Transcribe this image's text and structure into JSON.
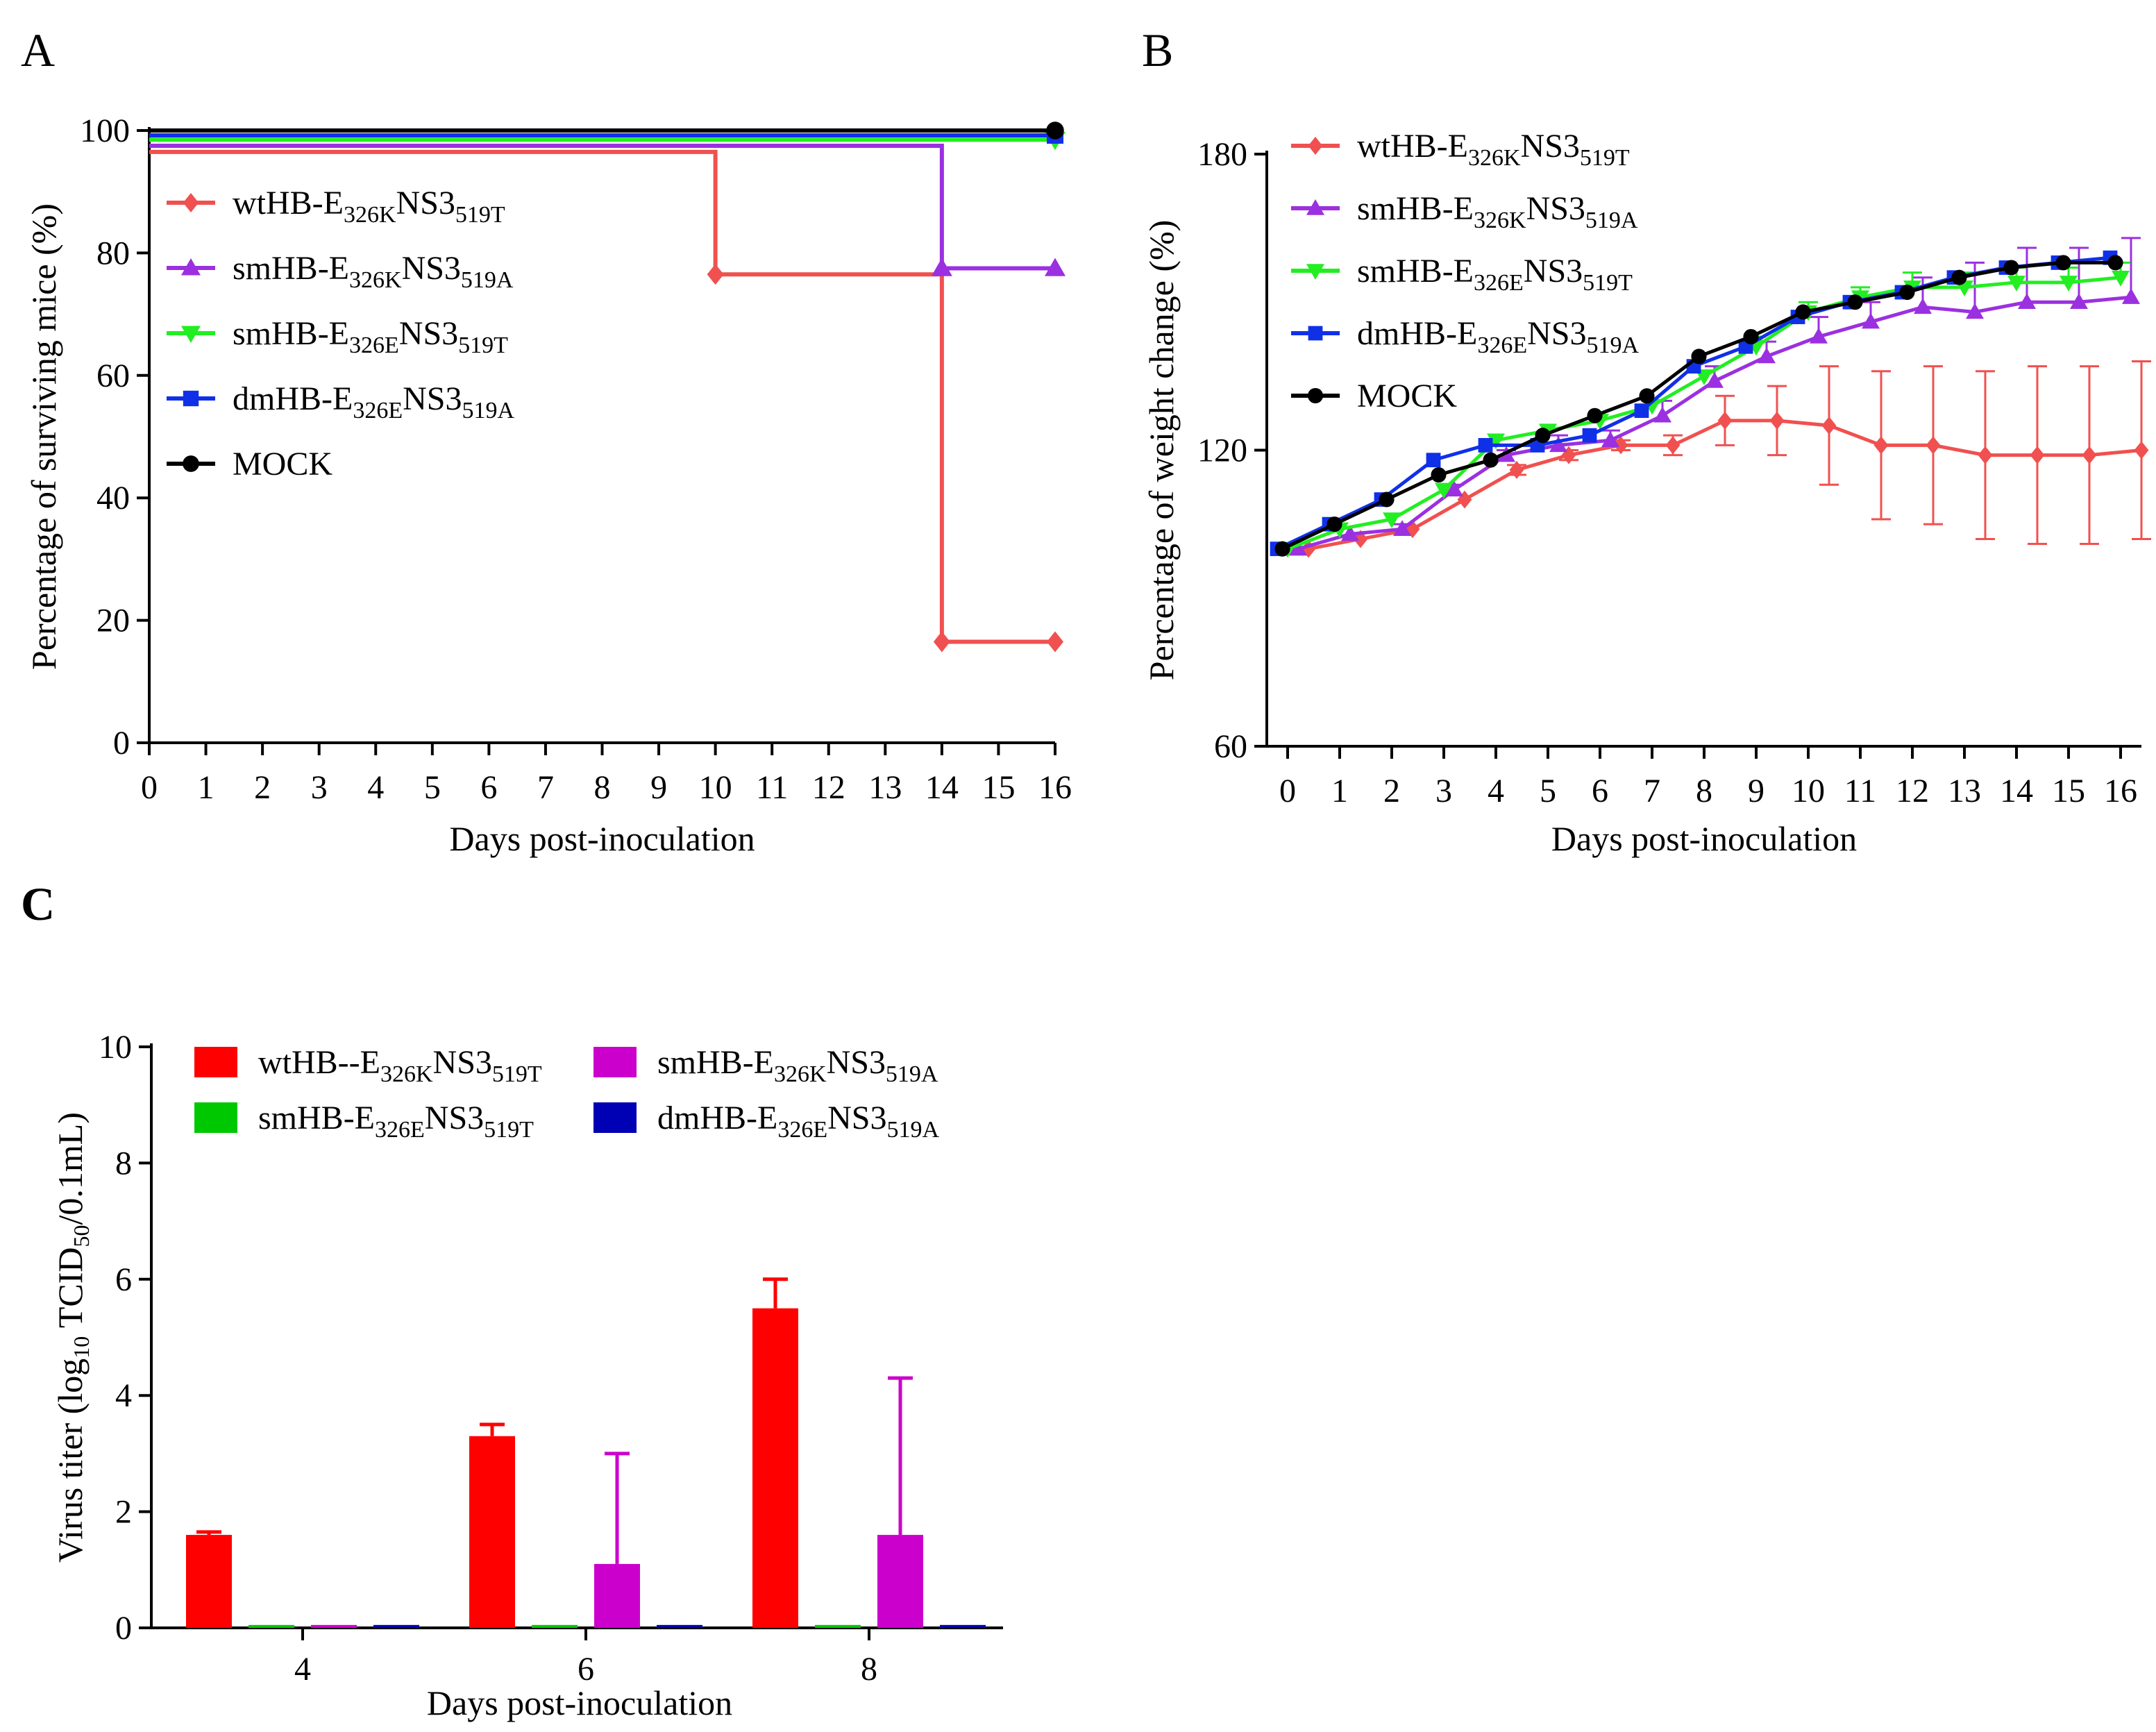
{
  "figure": {
    "panel_labels": [
      "A",
      "B",
      "C"
    ]
  },
  "colors": {
    "wt": "#f0504f",
    "sm_k": "#9b30e0",
    "sm_e": "#22ee22",
    "dm": "#1030e8",
    "mock": "#000000",
    "barWt": "#ff0000",
    "barSmE": "#00c800",
    "barSmK": "#cc00cc",
    "barDm": "#0000b4"
  },
  "chart_data": [
    {
      "panel": "A",
      "type": "line",
      "subtype": "survival-step",
      "xlabel": "Days post-inoculation",
      "ylabel": "Percentage of surviving mice (%)",
      "xlim": [
        0,
        16
      ],
      "ylim": [
        0,
        100
      ],
      "xticks": [
        "0",
        "1",
        "2",
        "3",
        "4",
        "5",
        "6",
        "7",
        "8",
        "9",
        "10",
        "11",
        "12",
        "13",
        "14",
        "15",
        "16"
      ],
      "yticks": [
        "0",
        "20",
        "40",
        "60",
        "80",
        "100"
      ],
      "legend_position": "center-left",
      "series": [
        {
          "name": "wtHB-E326KNS3519T",
          "base": "wtHB-E",
          "sub1": "326K",
          "mid": "NS3",
          "sub2": "519T",
          "color_key": "wt",
          "marker": "diamond",
          "y_offset": -3.5,
          "points": [
            [
              0,
              100
            ],
            [
              10,
              80
            ],
            [
              14,
              20
            ],
            [
              16,
              20
            ]
          ],
          "markers_at": [
            10,
            14,
            16
          ]
        },
        {
          "name": "smHB-E326KNS3519A",
          "base": "smHB-E",
          "sub1": "326K",
          "mid": "NS3",
          "sub2": "519A",
          "color_key": "sm_k",
          "marker": "triangle-up",
          "y_offset": -2.5,
          "points": [
            [
              0,
              100
            ],
            [
              14,
              80
            ],
            [
              16,
              80
            ]
          ],
          "markers_at": [
            14,
            16
          ]
        },
        {
          "name": "smHB-E326ENS3519T",
          "base": "smHB-E",
          "sub1": "326E",
          "mid": "NS3",
          "sub2": "519T",
          "color_key": "sm_e",
          "marker": "triangle-down",
          "y_offset": -1.5,
          "points": [
            [
              0,
              100
            ],
            [
              16,
              100
            ]
          ],
          "markers_at": [
            16
          ]
        },
        {
          "name": "dmHB-E326ENS3519A",
          "base": "dmHB-E",
          "sub1": "326E",
          "mid": "NS3",
          "sub2": "519A",
          "color_key": "dm",
          "marker": "square",
          "y_offset": -0.8,
          "points": [
            [
              0,
              100
            ],
            [
              16,
              100
            ]
          ],
          "markers_at": [
            16
          ]
        },
        {
          "name": "MOCK",
          "base": "MOCK",
          "sub1": "",
          "mid": "",
          "sub2": "",
          "color_key": "mock",
          "marker": "circle",
          "y_offset": 0,
          "points": [
            [
              0,
              100
            ],
            [
              16,
              100
            ]
          ],
          "markers_at": [
            16
          ]
        }
      ]
    },
    {
      "panel": "B",
      "type": "line",
      "xlabel": "Days post-inoculation",
      "ylabel": "Percentage of weight change (%)",
      "xlim": [
        -0.4,
        16.4
      ],
      "ylim": [
        60,
        180
      ],
      "xticks": [
        "0",
        "1",
        "2",
        "3",
        "4",
        "5",
        "6",
        "7",
        "8",
        "9",
        "10",
        "11",
        "12",
        "13",
        "14",
        "15",
        "16"
      ],
      "yticks": [
        "60",
        "120",
        "180"
      ],
      "legend_position": "top-left",
      "series": [
        {
          "name": "wtHB-E326KNS3519T",
          "base": "wtHB-E",
          "sub1": "326K",
          "mid": "NS3",
          "sub2": "519T",
          "color_key": "wt",
          "marker": "diamond",
          "x": [
            0,
            1,
            2,
            3,
            4,
            5,
            6,
            7,
            8,
            9,
            10,
            11,
            12,
            13,
            14,
            15,
            16
          ],
          "y": [
            100,
            102,
            104,
            110,
            116,
            119,
            121,
            121,
            126,
            126,
            125,
            121,
            121,
            119,
            119,
            119,
            120
          ],
          "err": [
            0,
            0,
            0,
            0,
            1,
            1,
            1,
            2,
            5,
            7,
            12,
            15,
            16,
            17,
            18,
            18,
            18
          ]
        },
        {
          "name": "smHB-E326KNS3519A",
          "base": "smHB-E",
          "sub1": "326K",
          "mid": "NS3",
          "sub2": "519A",
          "color_key": "sm_k",
          "marker": "triangle-up",
          "x": [
            0,
            1,
            2,
            3,
            4,
            5,
            6,
            7,
            8,
            9,
            10,
            11,
            12,
            13,
            14,
            15,
            16
          ],
          "y": [
            100,
            103,
            104,
            112,
            119,
            121,
            122,
            127,
            134,
            139,
            143,
            146,
            149,
            148,
            150,
            150,
            151
          ],
          "err": [
            0,
            0,
            1,
            1,
            1,
            2,
            2,
            3,
            3,
            3,
            4,
            4,
            6,
            10,
            11,
            11,
            12
          ]
        },
        {
          "name": "smHB-E326ENS3519T",
          "base": "smHB-E",
          "sub1": "326E",
          "mid": "NS3",
          "sub2": "519T",
          "color_key": "sm_e",
          "marker": "triangle-down",
          "x": [
            0,
            1,
            2,
            3,
            4,
            5,
            6,
            7,
            8,
            9,
            10,
            11,
            12,
            13,
            14,
            15,
            16
          ],
          "y": [
            100,
            104,
            106,
            112,
            122,
            124,
            126,
            129,
            135,
            141,
            148,
            151,
            153,
            153,
            154,
            154,
            155
          ],
          "err": [
            0,
            0,
            0,
            0,
            0,
            0,
            0,
            1,
            1,
            2,
            2,
            2,
            3,
            3,
            3,
            3,
            3
          ]
        },
        {
          "name": "dmHB-E326ENS3519A",
          "base": "dmHB-E",
          "sub1": "326E",
          "mid": "NS3",
          "sub2": "519A",
          "color_key": "dm",
          "marker": "square",
          "x": [
            0,
            1,
            2,
            3,
            4,
            5,
            6,
            7,
            8,
            9,
            10,
            11,
            12,
            13,
            14,
            15,
            16
          ],
          "y": [
            100,
            105,
            110,
            118,
            121,
            121,
            123,
            128,
            137,
            141,
            147,
            150,
            152,
            155,
            157,
            158,
            159
          ],
          "err": [
            0,
            0,
            0,
            0,
            0,
            0,
            0,
            0,
            0,
            0,
            0,
            0,
            0,
            0,
            0,
            0,
            0
          ]
        },
        {
          "name": "MOCK",
          "base": "MOCK",
          "sub1": "",
          "mid": "",
          "sub2": "",
          "color_key": "mock",
          "marker": "circle",
          "x": [
            0,
            1,
            2,
            3,
            4,
            5,
            6,
            7,
            8,
            9,
            10,
            11,
            12,
            13,
            14,
            15,
            16
          ],
          "y": [
            100,
            105,
            110,
            115,
            118,
            123,
            127,
            131,
            139,
            143,
            148,
            150,
            152,
            155,
            157,
            158,
            158
          ],
          "err": [
            0,
            0,
            0,
            0,
            0,
            0,
            0,
            0,
            0,
            0,
            0,
            0,
            0,
            0,
            0,
            0,
            0
          ]
        }
      ]
    },
    {
      "panel": "C",
      "type": "bar",
      "xlabel": "Days post-inoculation",
      "ylabel_parts": [
        "Virus titer (log",
        "10",
        " TCID",
        "50",
        "/0.1mL)"
      ],
      "ylim": [
        0,
        10
      ],
      "yticks": [
        "0",
        "2",
        "4",
        "6",
        "8",
        "10"
      ],
      "categories": [
        "4",
        "6",
        "8"
      ],
      "legend_position": "top",
      "series": [
        {
          "name": "wtHB--E326KNS3519T",
          "base": "wtHB--E",
          "sub1": "326K",
          "mid": "NS3",
          "sub2": "519T",
          "color_key": "barWt",
          "values": [
            1.6,
            3.3,
            5.5
          ],
          "err": [
            0.05,
            0.2,
            0.5
          ]
        },
        {
          "name": "smHB-E326ENS3519T",
          "base": "smHB-E",
          "sub1": "326E",
          "mid": "NS3",
          "sub2": "519T",
          "color_key": "barSmE",
          "values": [
            0.05,
            0.05,
            0.05
          ],
          "err": [
            0,
            0,
            0
          ]
        },
        {
          "name": "smHB-E326KNS3519A",
          "base": "smHB-E",
          "sub1": "326K",
          "mid": "NS3",
          "sub2": "519A",
          "color_key": "barSmK",
          "values": [
            0.05,
            1.1,
            1.6
          ],
          "err": [
            0,
            1.9,
            2.7
          ]
        },
        {
          "name": "dmHB-E326ENS3519A",
          "base": "dmHB-E",
          "sub1": "326E",
          "mid": "NS3",
          "sub2": "519A",
          "color_key": "barDm",
          "values": [
            0.05,
            0.05,
            0.05
          ],
          "err": [
            0,
            0,
            0
          ]
        }
      ]
    }
  ]
}
